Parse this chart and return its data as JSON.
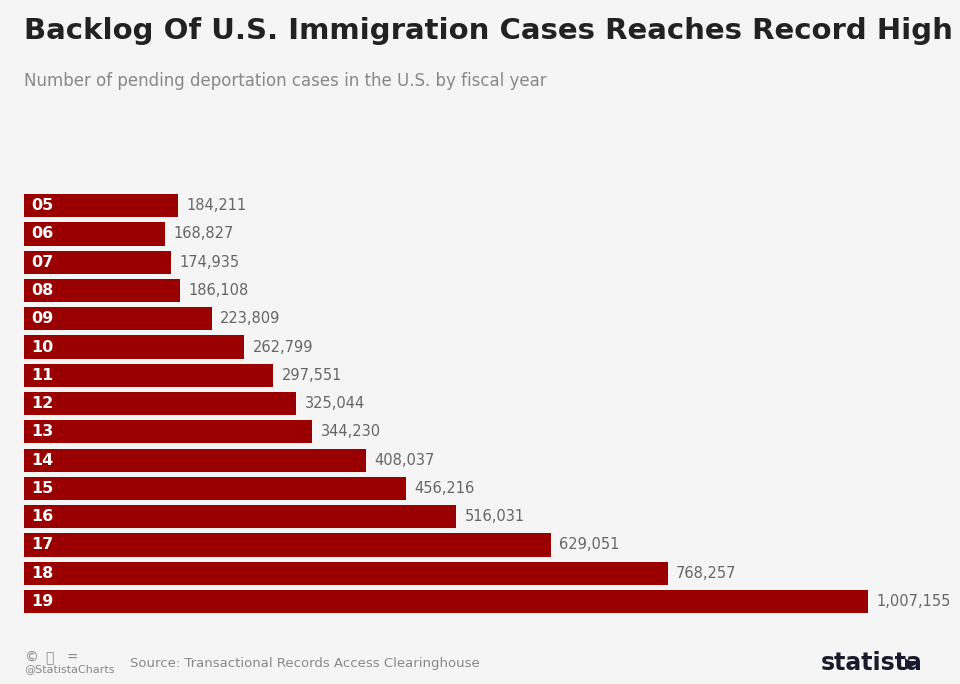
{
  "title": "Backlog Of U.S. Immigration Cases Reaches Record High",
  "subtitle": "Number of pending deportation cases in the U.S. by fiscal year",
  "categories": [
    "05",
    "06",
    "07",
    "08",
    "09",
    "10",
    "11",
    "12",
    "13",
    "14",
    "15",
    "16",
    "17",
    "18",
    "19"
  ],
  "values": [
    184211,
    168827,
    174935,
    186108,
    223809,
    262799,
    297551,
    325044,
    344230,
    408037,
    456216,
    516031,
    629051,
    768257,
    1007155
  ],
  "bar_color": "#9b0000",
  "label_color": "#666666",
  "year_label_color": "#ffffff",
  "title_color": "#222222",
  "subtitle_color": "#888888",
  "background_color": "#f5f5f5",
  "source_text": "Source: Transactional Records Access Clearinghouse",
  "credit_text": "@StatistaCharts",
  "value_labels": [
    "184,211",
    "168,827",
    "174,935",
    "186,108",
    "223,809",
    "262,799",
    "297,551",
    "325,044",
    "344,230",
    "408,037",
    "456,216",
    "516,031",
    "629,051",
    "768,257",
    "1,007,155"
  ],
  "xlim": [
    0,
    1100000
  ],
  "bar_height": 0.82
}
